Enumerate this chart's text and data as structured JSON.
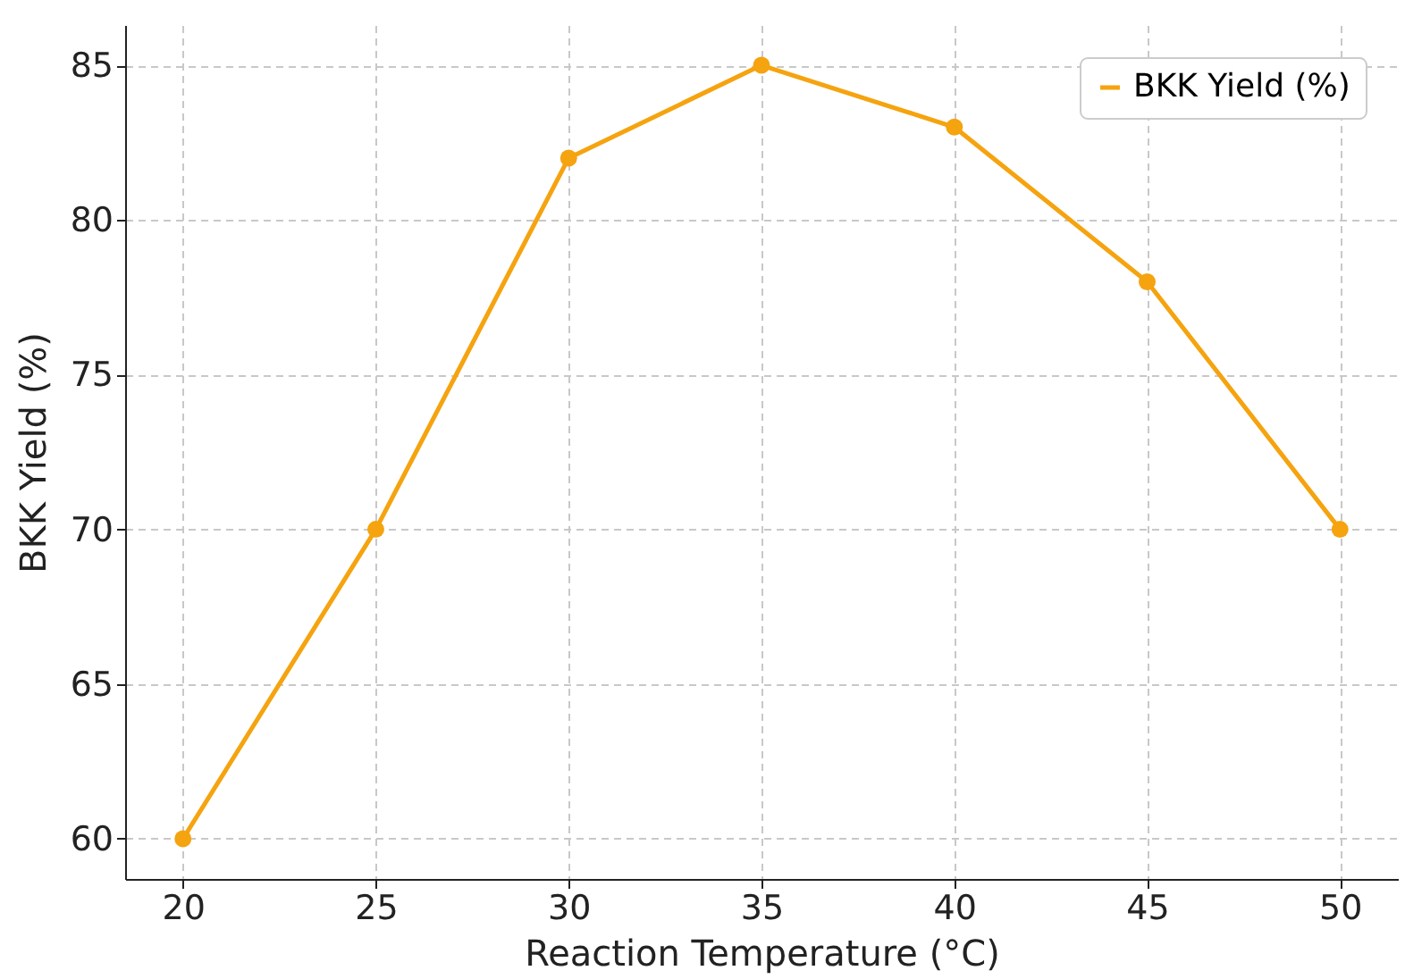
{
  "chart_data": {
    "type": "line",
    "xlabel": "Reaction Temperature (°C)",
    "ylabel": "BKK Yield (%)",
    "x": [
      20,
      25,
      30,
      35,
      40,
      45,
      50
    ],
    "series": [
      {
        "name": "BKK Yield (%)",
        "color": "#f5a30f",
        "values": [
          60,
          70,
          82,
          85,
          83,
          78,
          70
        ]
      }
    ],
    "xlim": [
      18.5,
      51.5
    ],
    "xticks": [
      20,
      25,
      30,
      35,
      40,
      45,
      50
    ],
    "ylim": [
      58.7,
      86.3
    ],
    "yticks": [
      60,
      65,
      70,
      75,
      80,
      85
    ],
    "grid": true,
    "legend": "top right",
    "marker": "circle",
    "line_style": "solid"
  }
}
